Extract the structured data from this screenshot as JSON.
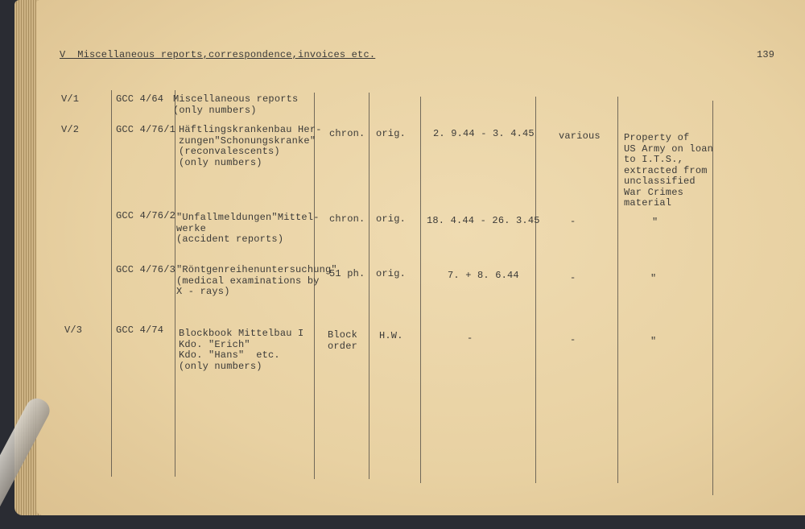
{
  "header": {
    "title": "V  Miscellaneous reports,correspondence,invoices etc.",
    "page_number": "139"
  },
  "rows": [
    {
      "no": "V/1",
      "ref": "GCC 4/64",
      "desc": "Miscellaneous reports\n(only numbers)",
      "type": "",
      "form": "",
      "dates": "",
      "extent": "",
      "remarks": ""
    },
    {
      "no": "V/2",
      "ref": "GCC 4/76/1",
      "desc": "Häftlingskrankenbau Her-\nzungen\"Schonungskranke\"\n(reconvalescents)\n(only numbers)",
      "type": "chron.",
      "form": "orig.",
      "dates": "2. 9.44 - 3. 4.45",
      "extent": "various",
      "remarks": "Property of\nUS Army on loan\nto I.T.S.,\nextracted from\nunclassified\nWar Crimes\nmaterial"
    },
    {
      "no": "",
      "ref": "GCC 4/76/2",
      "desc": "\"Unfallmeldungen\"Mittel-\nwerke\n(accident reports)",
      "type": "chron.",
      "form": "orig.",
      "dates": "18. 4.44 - 26. 3.45",
      "extent": "-",
      "remarks": "\""
    },
    {
      "no": "",
      "ref": "GCC 4/76/3",
      "desc": "\"Röntgenreihenuntersuchung\"\n(medical examinations by\nX - rays)",
      "type": "51 ph.",
      "form": "orig.",
      "dates": "7. + 8. 6.44",
      "extent": "-",
      "remarks": "\""
    },
    {
      "no": "V/3",
      "ref": "GCC 4/74",
      "desc": "Blockbook Mittelbau I\nKdo. \"Erich\"\nKdo. \"Hans\"  etc.\n(only numbers)",
      "type": "Block\norder",
      "form": "H.W.",
      "dates": "-",
      "extent": "-",
      "remarks": "\""
    }
  ]
}
